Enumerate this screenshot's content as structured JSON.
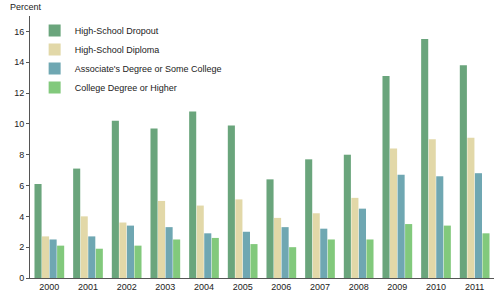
{
  "chart_data": {
    "type": "bar",
    "y_label": "Percent",
    "categories": [
      "2000",
      "2001",
      "2002",
      "2003",
      "2004",
      "2005",
      "2006",
      "2007",
      "2008",
      "2009",
      "2010",
      "2011"
    ],
    "series": [
      {
        "name": "High-School Dropout",
        "color": "#6aa57c",
        "values": [
          6.1,
          7.1,
          10.2,
          9.7,
          10.8,
          9.9,
          6.4,
          7.7,
          8.0,
          13.1,
          15.5,
          13.8
        ]
      },
      {
        "name": "High-School Diploma",
        "color": "#e2d8a8",
        "values": [
          2.7,
          4.0,
          3.6,
          5.0,
          4.7,
          5.1,
          3.9,
          4.2,
          5.2,
          8.4,
          9.0,
          9.1
        ]
      },
      {
        "name": "Associate's Degree or Some College",
        "color": "#6fa7b2",
        "values": [
          2.5,
          2.7,
          3.4,
          3.3,
          2.9,
          3.0,
          3.3,
          3.2,
          4.5,
          6.7,
          6.6,
          6.8
        ]
      },
      {
        "name": "College Degree or Higher",
        "color": "#82c97c",
        "values": [
          2.1,
          1.9,
          2.1,
          2.5,
          2.6,
          2.2,
          2.0,
          2.5,
          2.5,
          3.5,
          3.4,
          2.9
        ]
      }
    ],
    "ylim": [
      0,
      17
    ],
    "yticks": [
      0,
      2,
      4,
      6,
      8,
      10,
      12,
      14,
      16
    ],
    "grid": false,
    "legend": "top-left"
  }
}
